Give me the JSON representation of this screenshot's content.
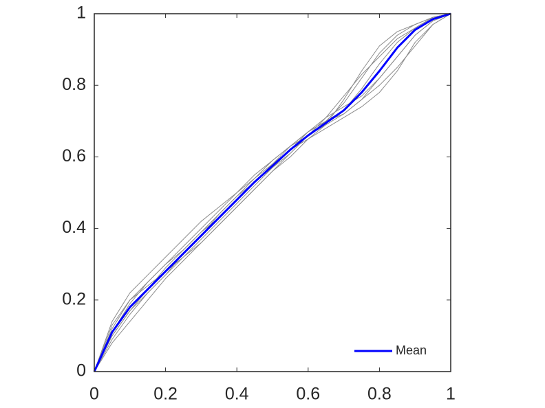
{
  "chart_data": {
    "type": "line",
    "x": [
      0,
      0.05,
      0.1,
      0.15,
      0.2,
      0.25,
      0.3,
      0.35,
      0.4,
      0.45,
      0.5,
      0.55,
      0.6,
      0.65,
      0.7,
      0.75,
      0.8,
      0.85,
      0.9,
      0.95,
      1
    ],
    "series": [
      {
        "color": "#8c8c8c",
        "values": [
          0,
          0.14,
          0.22,
          0.27,
          0.32,
          0.37,
          0.42,
          0.46,
          0.5,
          0.55,
          0.59,
          0.63,
          0.66,
          0.69,
          0.72,
          0.76,
          0.82,
          0.88,
          0.94,
          0.98,
          1
        ]
      },
      {
        "color": "#8c8c8c",
        "values": [
          0,
          0.08,
          0.14,
          0.2,
          0.26,
          0.31,
          0.36,
          0.41,
          0.46,
          0.51,
          0.56,
          0.61,
          0.66,
          0.7,
          0.75,
          0.82,
          0.89,
          0.94,
          0.97,
          0.99,
          1
        ]
      },
      {
        "color": "#8c8c8c",
        "values": [
          0,
          0.1,
          0.17,
          0.22,
          0.27,
          0.33,
          0.38,
          0.44,
          0.49,
          0.54,
          0.59,
          0.63,
          0.67,
          0.7,
          0.72,
          0.76,
          0.8,
          0.85,
          0.91,
          0.97,
          1
        ]
      },
      {
        "color": "#8c8c8c",
        "values": [
          0,
          0.12,
          0.2,
          0.25,
          0.3,
          0.35,
          0.4,
          0.45,
          0.5,
          0.54,
          0.58,
          0.62,
          0.65,
          0.69,
          0.76,
          0.84,
          0.91,
          0.95,
          0.97,
          0.99,
          1
        ]
      },
      {
        "color": "#8c8c8c",
        "values": [
          0,
          0.09,
          0.16,
          0.22,
          0.27,
          0.32,
          0.37,
          0.42,
          0.47,
          0.52,
          0.57,
          0.62,
          0.67,
          0.71,
          0.74,
          0.77,
          0.82,
          0.88,
          0.94,
          0.98,
          1
        ]
      },
      {
        "color": "#8c8c8c",
        "values": [
          0,
          0.11,
          0.19,
          0.25,
          0.3,
          0.34,
          0.39,
          0.44,
          0.49,
          0.53,
          0.57,
          0.61,
          0.66,
          0.71,
          0.77,
          0.83,
          0.88,
          0.93,
          0.96,
          0.99,
          1
        ]
      },
      {
        "color": "#8c8c8c",
        "values": [
          0,
          0.1,
          0.17,
          0.23,
          0.29,
          0.34,
          0.39,
          0.43,
          0.48,
          0.53,
          0.58,
          0.63,
          0.67,
          0.7,
          0.73,
          0.79,
          0.86,
          0.92,
          0.96,
          0.99,
          1
        ]
      },
      {
        "color": "#8c8c8c",
        "values": [
          0,
          0.13,
          0.2,
          0.24,
          0.28,
          0.32,
          0.36,
          0.41,
          0.46,
          0.51,
          0.56,
          0.6,
          0.65,
          0.68,
          0.71,
          0.74,
          0.78,
          0.84,
          0.92,
          0.97,
          1
        ]
      },
      {
        "name": "Mean",
        "color": "#0000ff",
        "values": [
          0,
          0.11,
          0.18,
          0.23,
          0.28,
          0.33,
          0.38,
          0.43,
          0.48,
          0.53,
          0.575,
          0.62,
          0.66,
          0.695,
          0.73,
          0.78,
          0.84,
          0.905,
          0.955,
          0.985,
          1
        ]
      }
    ],
    "xlim": [
      0,
      1
    ],
    "ylim": [
      0,
      1
    ],
    "xticks": [
      0,
      0.2,
      0.4,
      0.6,
      0.8,
      1
    ],
    "yticks": [
      0,
      0.2,
      0.4,
      0.6,
      0.8,
      1
    ],
    "legend": "lower right"
  }
}
